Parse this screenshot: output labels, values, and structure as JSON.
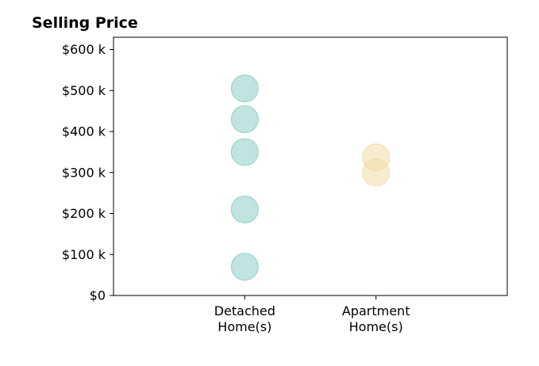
{
  "chart_data": {
    "type": "scatter",
    "title": "Selling Price",
    "xlabel": "",
    "ylabel": "",
    "categories": [
      [
        "Detached",
        "Home(s)"
      ],
      [
        "Apartment",
        "Home(s)"
      ]
    ],
    "xlim": [
      0,
      3
    ],
    "ylim": [
      0,
      630000
    ],
    "yticks": [
      {
        "value": 0,
        "label": "$0"
      },
      {
        "value": 100000,
        "label": "$100 k"
      },
      {
        "value": 200000,
        "label": "$200 k"
      },
      {
        "value": 300000,
        "label": "$300 k"
      },
      {
        "value": 400000,
        "label": "$400 k"
      },
      {
        "value": 500000,
        "label": "$500 k"
      },
      {
        "value": 600000,
        "label": "$600 k"
      }
    ],
    "grid": false,
    "legend": "none",
    "series": [
      {
        "category_index": 0,
        "color": "#8dcdc4",
        "values": [
          505000,
          430000,
          350000,
          210000,
          70000
        ]
      },
      {
        "category_index": 1,
        "color": "#f1dca8",
        "values": [
          337000,
          300000
        ]
      }
    ]
  }
}
